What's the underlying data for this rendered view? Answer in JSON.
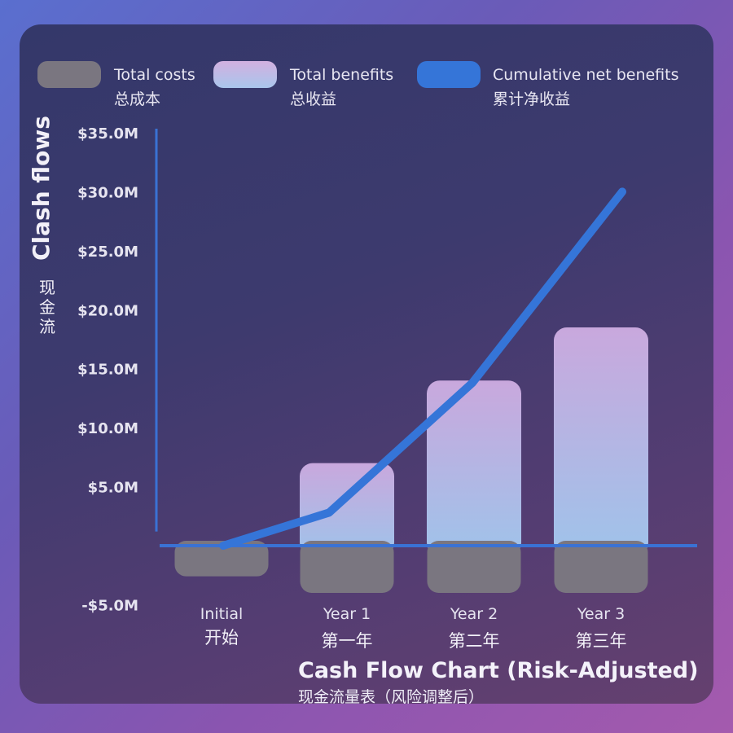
{
  "chart_data": {
    "type": "bar",
    "title": "Cash Flow Chart (Risk-Adjusted)",
    "subtitle": "现金流量表（风险调整后）",
    "ylabel": "Clash flows",
    "ylabel_zh": "现金流",
    "ylim": [
      -5.0,
      35.0
    ],
    "y_ticks": [
      {
        "value": 35,
        "label": "$35.0M"
      },
      {
        "value": 30,
        "label": "$30.0M"
      },
      {
        "value": 25,
        "label": "$25.0M"
      },
      {
        "value": 20,
        "label": "$20.0M"
      },
      {
        "value": 15,
        "label": "$15.0M"
      },
      {
        "value": 10,
        "label": "$10.0M"
      },
      {
        "value": 5,
        "label": "$5.0M"
      },
      {
        "value": -5,
        "label": "-$5.0M"
      }
    ],
    "categories": [
      {
        "en": "Initial",
        "zh": "开始"
      },
      {
        "en": "Year 1",
        "zh": "第一年"
      },
      {
        "en": "Year 2",
        "zh": "第二年"
      },
      {
        "en": "Year 3",
        "zh": "第三年"
      }
    ],
    "legend": [
      {
        "key": "costs",
        "en": "Total costs",
        "zh": "总成本",
        "color": "#7a7680"
      },
      {
        "key": "benefits",
        "en": "Total benefits",
        "zh": "总收益",
        "color": "#c8aee0"
      },
      {
        "key": "cumulative",
        "en": "Cumulative net benefits",
        "zh": "累计净收益",
        "color": "#3575d8"
      }
    ],
    "series": [
      {
        "key": "costs",
        "type": "bar",
        "values": [
          -2.6,
          -4.0,
          -4.0,
          -4.0
        ]
      },
      {
        "key": "benefits",
        "type": "bar",
        "values": [
          0,
          7.0,
          14.0,
          18.5
        ]
      },
      {
        "key": "cumulative",
        "type": "line",
        "values": [
          0,
          2.8,
          13.8,
          30.0
        ]
      }
    ],
    "legend_position": "top",
    "grid": false,
    "colors": {
      "cost_bar": "#7a7680",
      "benefit_top": "#c9a8dd",
      "benefit_bottom": "#9fc3ea",
      "line": "#3575d8",
      "axis": "#3a72d4"
    }
  }
}
